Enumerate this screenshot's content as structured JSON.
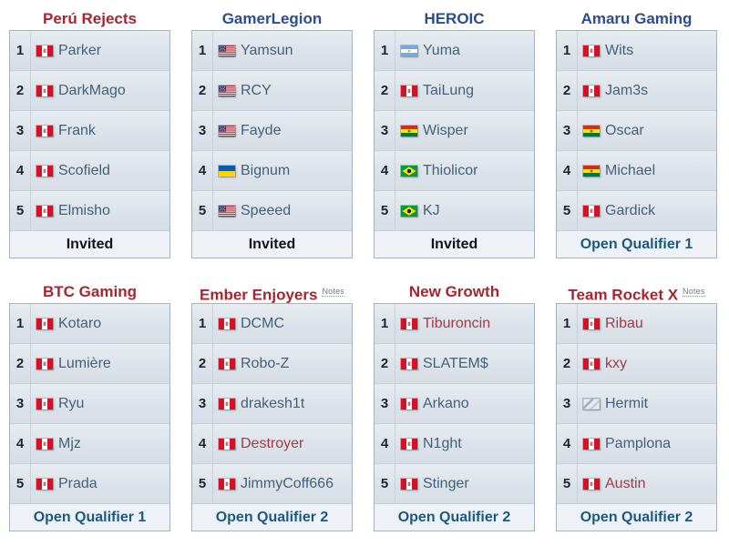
{
  "notes_label": "Notes",
  "colors": {
    "title_red": "#a8242f",
    "title_blue": "#2a4d8f",
    "link_slate": "#44607a",
    "link_red": "#a03c48",
    "footer_link_blue": "#1a5a80",
    "row_background": "#dde4eb",
    "footer_background": "#eef2f6",
    "table_border": "#a9b3be"
  },
  "teams": [
    {
      "name": "Perú Rejects",
      "title_color": "red",
      "notes": false,
      "players": [
        {
          "n": 1,
          "name": "Parker",
          "flag": "peru",
          "flag_label": "Peru",
          "link": "normal"
        },
        {
          "n": 2,
          "name": "DarkMago",
          "flag": "peru",
          "flag_label": "Peru",
          "link": "normal"
        },
        {
          "n": 3,
          "name": "Frank",
          "flag": "peru",
          "flag_label": "Peru",
          "link": "normal"
        },
        {
          "n": 4,
          "name": "Scofield",
          "flag": "peru",
          "flag_label": "Peru",
          "link": "normal"
        },
        {
          "n": 5,
          "name": "Elmisho",
          "flag": "peru",
          "flag_label": "Peru",
          "link": "normal"
        }
      ],
      "footer": {
        "label": "Invited",
        "link": false
      }
    },
    {
      "name": "GamerLegion",
      "title_color": "blue",
      "notes": false,
      "players": [
        {
          "n": 1,
          "name": "Yamsun",
          "flag": "usa",
          "flag_label": "United States",
          "link": "normal"
        },
        {
          "n": 2,
          "name": "RCY",
          "flag": "usa",
          "flag_label": "United States",
          "link": "normal"
        },
        {
          "n": 3,
          "name": "Fayde",
          "flag": "usa",
          "flag_label": "United States",
          "link": "normal"
        },
        {
          "n": 4,
          "name": "Bignum",
          "flag": "ukraine",
          "flag_label": "Ukraine",
          "link": "normal"
        },
        {
          "n": 5,
          "name": "Speeed",
          "flag": "usa",
          "flag_label": "United States",
          "link": "normal"
        }
      ],
      "footer": {
        "label": "Invited",
        "link": false
      }
    },
    {
      "name": "HEROIC",
      "title_color": "blue",
      "notes": false,
      "players": [
        {
          "n": 1,
          "name": "Yuma",
          "flag": "argentina",
          "flag_label": "Argentina",
          "link": "normal"
        },
        {
          "n": 2,
          "name": "TaiLung",
          "flag": "peru",
          "flag_label": "Peru",
          "link": "normal"
        },
        {
          "n": 3,
          "name": "Wisper",
          "flag": "bolivia",
          "flag_label": "Bolivia",
          "link": "normal"
        },
        {
          "n": 4,
          "name": "Thiolicor",
          "flag": "brazil",
          "flag_label": "Brazil",
          "link": "normal"
        },
        {
          "n": 5,
          "name": "KJ",
          "flag": "brazil",
          "flag_label": "Brazil",
          "link": "normal"
        }
      ],
      "footer": {
        "label": "Invited",
        "link": false
      }
    },
    {
      "name": "Amaru Gaming",
      "title_color": "blue",
      "notes": false,
      "players": [
        {
          "n": 1,
          "name": "Wits",
          "flag": "peru",
          "flag_label": "Peru",
          "link": "normal"
        },
        {
          "n": 2,
          "name": "Jam3s",
          "flag": "peru",
          "flag_label": "Peru",
          "link": "normal"
        },
        {
          "n": 3,
          "name": "Oscar",
          "flag": "bolivia",
          "flag_label": "Bolivia",
          "link": "normal"
        },
        {
          "n": 4,
          "name": "Michael",
          "flag": "bolivia",
          "flag_label": "Bolivia",
          "link": "normal"
        },
        {
          "n": 5,
          "name": "Gardick",
          "flag": "peru",
          "flag_label": "Peru",
          "link": "normal"
        }
      ],
      "footer": {
        "label": "Open Qualifier 1",
        "link": true
      }
    },
    {
      "name": "BTC Gaming",
      "title_color": "red",
      "notes": false,
      "players": [
        {
          "n": 1,
          "name": "Kotaro",
          "flag": "peru",
          "flag_label": "Peru",
          "link": "normal"
        },
        {
          "n": 2,
          "name": "Lumière",
          "flag": "peru",
          "flag_label": "Peru",
          "link": "normal"
        },
        {
          "n": 3,
          "name": "Ryu",
          "flag": "peru",
          "flag_label": "Peru",
          "link": "normal"
        },
        {
          "n": 4,
          "name": "Mjz",
          "flag": "peru",
          "flag_label": "Peru",
          "link": "normal"
        },
        {
          "n": 5,
          "name": "Prada",
          "flag": "peru",
          "flag_label": "Peru",
          "link": "normal"
        }
      ],
      "footer": {
        "label": "Open Qualifier 1",
        "link": true
      }
    },
    {
      "name": "Ember Enjoyers",
      "title_color": "red",
      "notes": true,
      "players": [
        {
          "n": 1,
          "name": "DCMC",
          "flag": "peru",
          "flag_label": "Peru",
          "link": "normal"
        },
        {
          "n": 2,
          "name": "Robo-Z",
          "flag": "peru",
          "flag_label": "Peru",
          "link": "normal"
        },
        {
          "n": 3,
          "name": "drakesh1t",
          "flag": "peru",
          "flag_label": "Peru",
          "link": "normal"
        },
        {
          "n": 4,
          "name": "Destroyer",
          "flag": "peru",
          "flag_label": "Peru",
          "link": "red"
        },
        {
          "n": 5,
          "name": "JimmyCoff666",
          "flag": "peru",
          "flag_label": "Peru",
          "link": "normal"
        }
      ],
      "footer": {
        "label": "Open Qualifier 2",
        "link": true
      }
    },
    {
      "name": "New Growth",
      "title_color": "red",
      "notes": false,
      "players": [
        {
          "n": 1,
          "name": "Tiburoncin",
          "flag": "peru",
          "flag_label": "Peru",
          "link": "red"
        },
        {
          "n": 2,
          "name": "SLATEM$",
          "flag": "peru",
          "flag_label": "Peru",
          "link": "normal"
        },
        {
          "n": 3,
          "name": "Arkano",
          "flag": "peru",
          "flag_label": "Peru",
          "link": "normal"
        },
        {
          "n": 4,
          "name": "N1ght",
          "flag": "peru",
          "flag_label": "Peru",
          "link": "normal"
        },
        {
          "n": 5,
          "name": "Stinger",
          "flag": "peru",
          "flag_label": "Peru",
          "link": "normal"
        }
      ],
      "footer": {
        "label": "Open Qualifier 2",
        "link": true
      }
    },
    {
      "name": "Team Rocket X",
      "title_color": "red",
      "notes": true,
      "players": [
        {
          "n": 1,
          "name": "Ribau",
          "flag": "peru",
          "flag_label": "Peru",
          "link": "red"
        },
        {
          "n": 2,
          "name": "kxy",
          "flag": "peru",
          "flag_label": "Peru",
          "link": "red"
        },
        {
          "n": 3,
          "name": "Hermit",
          "flag": "unknown",
          "flag_label": "Unknown",
          "link": "normal"
        },
        {
          "n": 4,
          "name": "Pamplona",
          "flag": "peru",
          "flag_label": "Peru",
          "link": "normal"
        },
        {
          "n": 5,
          "name": "Austin",
          "flag": "peru",
          "flag_label": "Peru",
          "link": "red"
        }
      ],
      "footer": {
        "label": "Open Qualifier 2",
        "link": true
      }
    }
  ]
}
